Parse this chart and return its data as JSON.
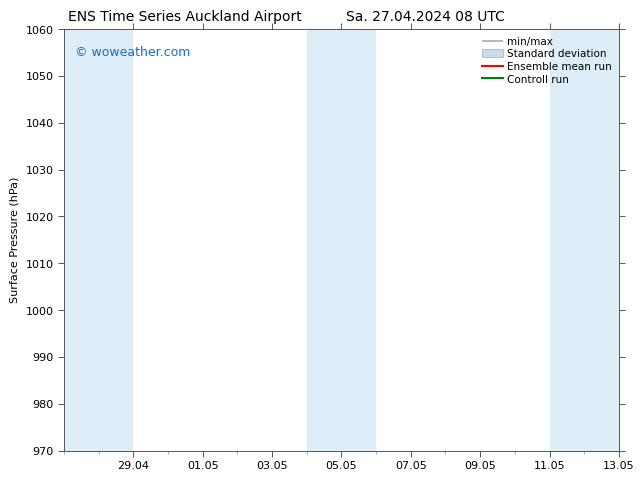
{
  "title_left": "ENS Time Series Auckland Airport",
  "title_right": "Sa. 27.04.2024 08 UTC",
  "ylabel": "Surface Pressure (hPa)",
  "ylim": [
    970,
    1060
  ],
  "yticks": [
    970,
    980,
    990,
    1000,
    1010,
    1020,
    1030,
    1040,
    1050,
    1060
  ],
  "xtick_labels": [
    "29.04",
    "01.05",
    "03.05",
    "05.05",
    "07.05",
    "09.05",
    "11.05",
    "13.05"
  ],
  "xtick_positions": [
    2,
    4,
    6,
    8,
    10,
    12,
    14,
    16
  ],
  "xlim": [
    0,
    16
  ],
  "watermark": "© woweather.com",
  "watermark_color": "#1a6bbf",
  "bg_color": "#ffffff",
  "band_color": "#ddeef8",
  "minmax_color": "#aaaaaa",
  "stddev_color": "#c8dcea",
  "mean_color": "#ff0000",
  "control_color": "#008000",
  "legend_labels": [
    "min/max",
    "Standard deviation",
    "Ensemble mean run",
    "Controll run"
  ],
  "title_fontsize": 10,
  "axis_fontsize": 8,
  "tick_fontsize": 8,
  "watermark_fontsize": 9,
  "legend_fontsize": 7.5
}
